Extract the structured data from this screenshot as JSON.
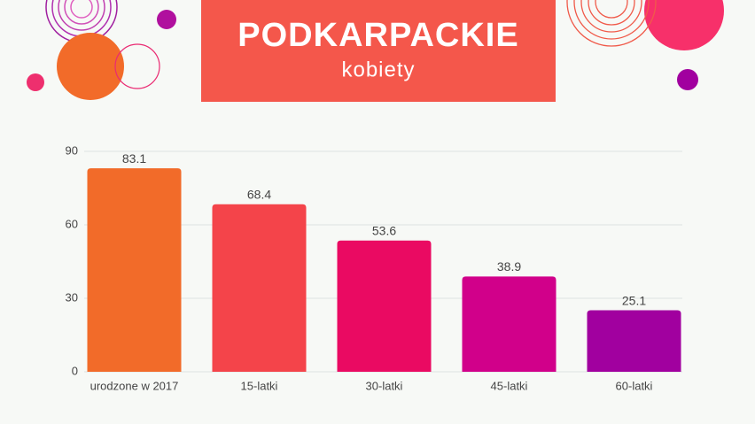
{
  "chart_data": {
    "type": "bar",
    "title": "PODKARPACKIE",
    "subtitle": "kobiety",
    "categories": [
      "urodzone w 2017",
      "15-latki",
      "30-latki",
      "45-latki",
      "60-latki"
    ],
    "values": [
      83.1,
      68.4,
      53.6,
      38.9,
      25.1
    ],
    "colors": [
      "#f26b29",
      "#f4444a",
      "#ea0a62",
      "#d1008a",
      "#a1009f"
    ],
    "ylim": [
      0,
      90
    ],
    "yticks": [
      0,
      30,
      60,
      90
    ],
    "grid": true
  }
}
